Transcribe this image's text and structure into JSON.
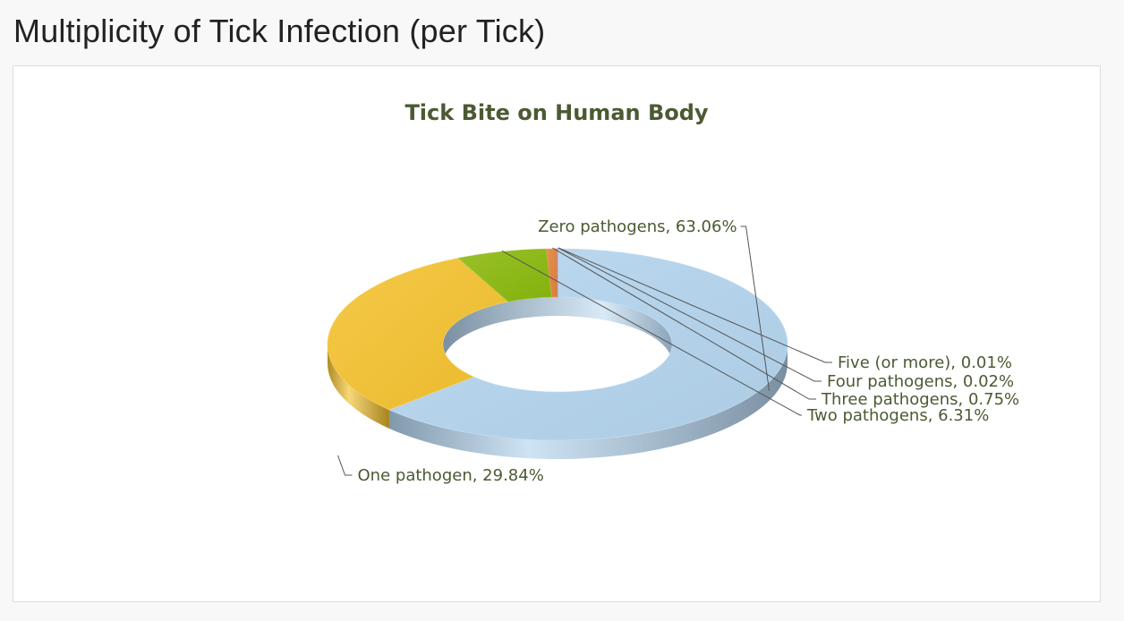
{
  "page": {
    "title": "Multiplicity of Tick Infection (per Tick)"
  },
  "chart_data": {
    "type": "pie",
    "variant": "3d-donut",
    "title": "Tick Bite on Human Body",
    "title_color": "#4b5a33",
    "label_color": "#4b5a33",
    "slices": [
      {
        "name": "Zero pathogens",
        "value": 63.06,
        "label": "Zero pathogens, 63.06%",
        "color": "#b3d4ee"
      },
      {
        "name": "One pathogen",
        "value": 29.84,
        "label": "One pathogen, 29.84%",
        "color": "#f4c22f"
      },
      {
        "name": "Two pathogens",
        "value": 6.31,
        "label": "Two pathogens, 6.31%",
        "color": "#8ab80c"
      },
      {
        "name": "Three pathogens",
        "value": 0.75,
        "label": "Three pathogens, 0.75%",
        "color": "#e0823a"
      },
      {
        "name": "Four pathogens",
        "value": 0.02,
        "label": "Four pathogens, 0.02%",
        "color": "#c94d3a"
      },
      {
        "name": "Five (or more)",
        "value": 0.01,
        "label": "Five (or more), 0.01%",
        "color": "#8d5aa8"
      }
    ]
  }
}
